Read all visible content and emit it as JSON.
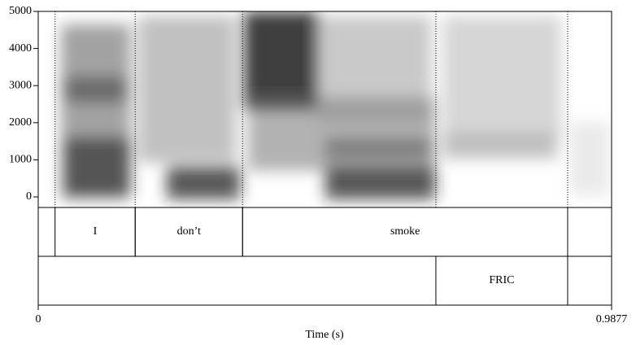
{
  "chart_data": {
    "type": "spectrogram",
    "xlabel": "Time (s)",
    "xlim": [
      0,
      0.9877
    ],
    "xticks": [
      0,
      0.9877
    ],
    "ylim": [
      -285,
      5000
    ],
    "yticks": [
      0,
      1000,
      2000,
      3000,
      4000,
      5000
    ],
    "tiers": [
      {
        "intervals": [
          {
            "start": 0.029,
            "end": 0.167,
            "label": "I"
          },
          {
            "start": 0.167,
            "end": 0.352,
            "label": "don’t"
          },
          {
            "start": 0.352,
            "end": 0.912,
            "label": "smoke"
          }
        ]
      },
      {
        "intervals": [
          {
            "start": 0.685,
            "end": 0.912,
            "label": "FRIC"
          }
        ]
      }
    ]
  }
}
